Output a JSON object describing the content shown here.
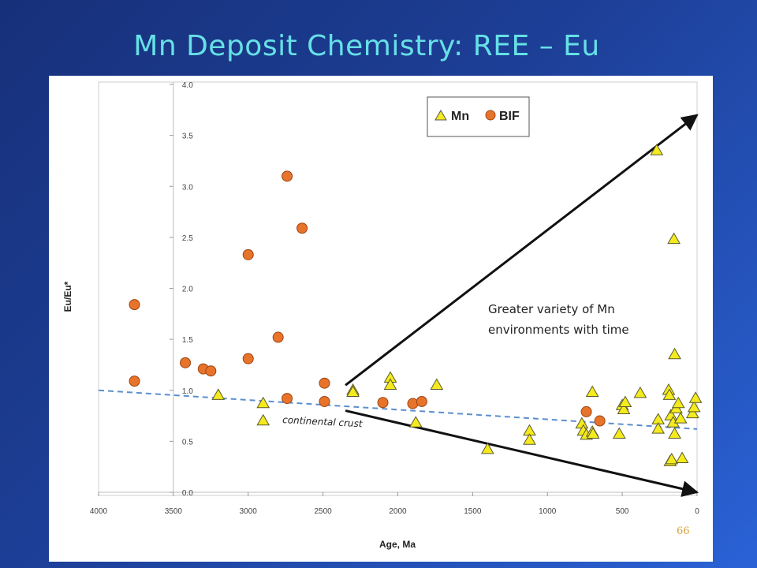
{
  "slide": {
    "title": "Mn Deposit Chemistry: REE – Eu",
    "page_number": "66"
  },
  "chart_data": {
    "type": "scatter",
    "xlabel": "Age, Ma",
    "ylabel": "Eu/Eu*",
    "xlim": [
      4000,
      0
    ],
    "ylim": [
      0,
      4.0
    ],
    "x_ticks": [
      "4000",
      "3500",
      "3000",
      "2500",
      "2000",
      "1500",
      "1000",
      "500",
      "0"
    ],
    "y_ticks": [
      "0.0",
      "0.5",
      "1.0",
      "1.5",
      "2.0",
      "2.5",
      "3.0",
      "3.5",
      "4.0"
    ],
    "legend": {
      "position": "top-right",
      "entries": [
        "Mn",
        "BIF"
      ]
    },
    "series": [
      {
        "name": "Mn",
        "marker": "triangle",
        "color": "#f5ea1e",
        "points": [
          [
            3200,
            0.95
          ],
          [
            2900,
            0.87
          ],
          [
            2900,
            0.7
          ],
          [
            2300,
            1.0
          ],
          [
            2300,
            0.98
          ],
          [
            2050,
            1.12
          ],
          [
            2050,
            1.05
          ],
          [
            1880,
            0.68
          ],
          [
            1740,
            1.05
          ],
          [
            1400,
            0.42
          ],
          [
            1120,
            0.6
          ],
          [
            1120,
            0.51
          ],
          [
            770,
            0.67
          ],
          [
            760,
            0.6
          ],
          [
            740,
            0.56
          ],
          [
            700,
            0.98
          ],
          [
            700,
            0.59
          ],
          [
            695,
            0.57
          ],
          [
            520,
            0.57
          ],
          [
            500,
            0.85
          ],
          [
            490,
            0.81
          ],
          [
            480,
            0.88
          ],
          [
            380,
            0.97
          ],
          [
            270,
            3.35
          ],
          [
            260,
            0.71
          ],
          [
            260,
            0.62
          ],
          [
            190,
            1.0
          ],
          [
            185,
            0.95
          ],
          [
            180,
            0.3
          ],
          [
            175,
            0.75
          ],
          [
            170,
            0.32
          ],
          [
            160,
            0.68
          ],
          [
            155,
            2.48
          ],
          [
            150,
            1.35
          ],
          [
            150,
            0.57
          ],
          [
            140,
            0.82
          ],
          [
            125,
            0.87
          ],
          [
            110,
            0.72
          ],
          [
            100,
            0.33
          ],
          [
            30,
            0.77
          ],
          [
            20,
            0.83
          ],
          [
            10,
            0.92
          ]
        ]
      },
      {
        "name": "BIF",
        "marker": "circle",
        "color": "#e8732a",
        "points": [
          [
            3760,
            1.84
          ],
          [
            3760,
            1.09
          ],
          [
            3420,
            1.27
          ],
          [
            3300,
            1.21
          ],
          [
            3250,
            1.19
          ],
          [
            3000,
            2.33
          ],
          [
            3000,
            1.31
          ],
          [
            2800,
            1.52
          ],
          [
            2740,
            3.1
          ],
          [
            2740,
            0.92
          ],
          [
            2640,
            2.59
          ],
          [
            2490,
            1.07
          ],
          [
            2490,
            0.89
          ],
          [
            2100,
            0.88
          ],
          [
            1900,
            0.87
          ],
          [
            1840,
            0.89
          ],
          [
            740,
            0.79
          ],
          [
            650,
            0.7
          ]
        ]
      }
    ],
    "reference_line": {
      "label": "continental crust",
      "style": "dashed",
      "color": "#5b8fd0",
      "points": [
        [
          4000,
          1.0
        ],
        [
          0,
          0.62
        ]
      ]
    },
    "annotations": [
      {
        "text_lines": [
          "Greater variety of Mn",
          "environments with time"
        ]
      }
    ],
    "arrows": [
      {
        "from": [
          2350,
          1.05
        ],
        "to": [
          0,
          3.7
        ]
      },
      {
        "from": [
          2350,
          0.8
        ],
        "to": [
          0,
          0.0
        ]
      }
    ]
  }
}
